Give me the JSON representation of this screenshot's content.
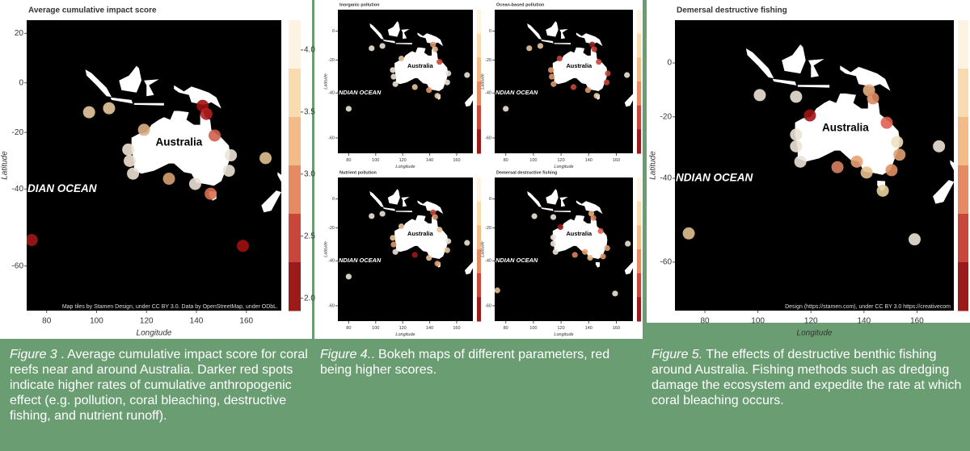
{
  "chart_data": [
    {
      "type": "scatter",
      "title": "Average cumulative impact score",
      "x_label": "Longitude",
      "y_label": "Latitude",
      "xlim": [
        72,
        174
      ],
      "ylim": [
        -68,
        25
      ],
      "xticks": [
        80,
        100,
        120,
        140,
        160
      ],
      "yticks": [
        20,
        0,
        -20,
        -40,
        -60
      ],
      "x": [
        97,
        105,
        119,
        142.5,
        144,
        147.3,
        112.7,
        113.3,
        114.6,
        129,
        139.5,
        145.7,
        153.8,
        153,
        167.7,
        74,
        158.6
      ],
      "y": [
        -12,
        -10.4,
        -19,
        -9.4,
        -12.7,
        -21.2,
        -26.5,
        -30.6,
        -35,
        -36.7,
        -38.4,
        -41.5,
        -28.6,
        -34,
        -29.6,
        -54.2,
        -55.6
      ],
      "colors": [
        "#e8c9a0",
        "#e8c9a0",
        "#e0b08a",
        "#a01010",
        "#b02020",
        "#d06050",
        "#efe4d5",
        "#efe4d5",
        "#ebe0d2",
        "#d8a070",
        "#ebe0d5",
        "#d87050",
        "#ece3d6",
        "#ece3d6",
        "#e0c090",
        "#a01818",
        "#a01010"
      ],
      "labels": [
        "Australia",
        "DIAN OCEAN"
      ],
      "attribution": "Map tiles by Stamen Design, under CC BY 3.0. Data by OpenStreetMap, under ODbL.",
      "colorbar_colors": [
        "#fdf3e3",
        "#f8dcb0",
        "#f2bb88",
        "#e58a63",
        "#c8473a",
        "#9b1a1a"
      ],
      "colorbar_lim": [
        1.9,
        4.24
      ],
      "colorbar_ticks": [
        {
          "value": 4,
          "label": "4.0"
        },
        3.5,
        {
          "value": 3,
          "label": "3.0"
        },
        2.5,
        {
          "value": 2,
          "label": "2.0"
        }
      ]
    },
    {
      "type": "scatter",
      "title": "Inorganic pollution",
      "x_label": "Longitude",
      "y_label": "Latitude",
      "xlim": [
        72,
        172
      ],
      "ylim": [
        -65,
        15
      ],
      "xticks": [
        80,
        100,
        120,
        140,
        160
      ],
      "yticks": [
        0,
        -20,
        -40,
        -60
      ],
      "x": [
        97,
        105,
        119,
        142.5,
        144,
        147.3,
        112.7,
        113.3,
        114.6,
        129,
        139.5,
        145.7,
        153.8,
        153,
        167.7,
        80
      ],
      "y": [
        -12,
        -10.4,
        -19,
        -9.4,
        -12.7,
        -21.2,
        -26.5,
        -30.6,
        -35,
        -36.7,
        -38.4,
        -41.5,
        -28.6,
        -34,
        -29.6,
        -48
      ],
      "colors": [
        "#ece3d6",
        "#ece3d6",
        "#e8c49a",
        "#e0966a",
        "#e8c49a",
        "#c8473a",
        "#ece3d6",
        "#ece3d6",
        "#ece3d6",
        "#e8c49a",
        "#e0966a",
        "#e8c49a",
        "#ece3d6",
        "#ece3d6",
        "#ece3d6",
        "#ece3d6"
      ],
      "labels": [
        "Australia",
        "NDIAN OCEAN"
      ],
      "colorbar_colors": [
        "#fdf3e3",
        "#f8dcb0",
        "#f2bb88",
        "#e58a63",
        "#c8473a",
        "#9b1a1a"
      ]
    },
    {
      "type": "scatter",
      "title": "Ocean-based pollution",
      "x_label": "Longitude",
      "y_label": "Latitude",
      "xlim": [
        72,
        172
      ],
      "ylim": [
        -65,
        15
      ],
      "xticks": [
        80,
        100,
        120,
        140,
        160
      ],
      "yticks": [
        0,
        -20,
        -40,
        -60
      ],
      "x": [
        97,
        105,
        119,
        142.5,
        144,
        147.3,
        112.7,
        113.3,
        114.6,
        129,
        139.5,
        145.7,
        153.8,
        153,
        167.7,
        80
      ],
      "y": [
        -12,
        -10.4,
        -19,
        -9.4,
        -12.7,
        -21.2,
        -26.5,
        -30.6,
        -35,
        -36.7,
        -38.4,
        -41.5,
        -28.6,
        -34,
        -29.6,
        -48
      ],
      "colors": [
        "#e8c49a",
        "#e8c49a",
        "#c8473a",
        "#9b1a1a",
        "#c8473a",
        "#c8473a",
        "#e0966a",
        "#e0966a",
        "#e0966a",
        "#c8473a",
        "#e0966a",
        "#e8c49a",
        "#c8473a",
        "#c8473a",
        "#ece3d6",
        "#ece3d6"
      ],
      "labels": [
        "Australia",
        "NDIAN OCEAN"
      ],
      "colorbar_colors": [
        "#fdf3e3",
        "#f8dcb0",
        "#f2bb88",
        "#e58a63",
        "#c8473a",
        "#9b1a1a"
      ]
    },
    {
      "type": "scatter",
      "title": "Nutrient pollution",
      "x_label": "Longitude",
      "y_label": "Latitude",
      "xlim": [
        72,
        172
      ],
      "ylim": [
        -65,
        15
      ],
      "xticks": [
        80,
        100,
        120,
        140,
        160
      ],
      "yticks": [
        0,
        -20,
        -40,
        -60
      ],
      "x": [
        97,
        105,
        119,
        142.5,
        144,
        147.3,
        112.7,
        113.3,
        114.6,
        129,
        139.5,
        145.7,
        153.8,
        153,
        167.7,
        80
      ],
      "y": [
        -12,
        -10.4,
        -19,
        -9.4,
        -12.7,
        -21.2,
        -26.5,
        -30.6,
        -35,
        -36.7,
        -38.4,
        -41.5,
        -28.6,
        -34,
        -29.6,
        -48
      ],
      "colors": [
        "#ece3d6",
        "#ece3d6",
        "#e8c49a",
        "#c8473a",
        "#e0966a",
        "#e8c49a",
        "#e8c49a",
        "#e0966a",
        "#ece3d6",
        "#9b1a1a",
        "#e8c49a",
        "#e0966a",
        "#ece3d6",
        "#e8c49a",
        "#ece3d6",
        "#ece3d6"
      ],
      "labels": [
        "Australia",
        "NDIAN OCEAN"
      ],
      "colorbar_colors": [
        "#fdf3e3",
        "#f8dcb0",
        "#f2bb88",
        "#e58a63",
        "#c8473a",
        "#9b1a1a"
      ]
    },
    {
      "type": "scatter",
      "title": "Demersal destructive fishing",
      "x_label": "Longitude",
      "y_label": "Latitude",
      "xlim": [
        72,
        172
      ],
      "ylim": [
        -65,
        15
      ],
      "xticks": [
        80,
        100,
        120,
        140,
        160
      ],
      "yticks": [
        0,
        -20,
        -40,
        -60
      ],
      "x": [
        100.7,
        114.4,
        119.6,
        141.9,
        143.4,
        148.6,
        114.4,
        114.4,
        116,
        130,
        137.3,
        141,
        150.4,
        153.4,
        168.3,
        73.9,
        159.1
      ],
      "y": [
        -12.1,
        -12.7,
        -19.5,
        -10.3,
        -13.3,
        -22.1,
        -26.2,
        -30.1,
        -35,
        -36.7,
        -35,
        -38.3,
        -37.6,
        -32.8,
        -30.1,
        -54.1,
        -55.4
      ],
      "colors": [
        "#ece3d6",
        "#ece3d6",
        "#9b1a1a",
        "#e8b080",
        "#d88a60",
        "#e06050",
        "#ece3d6",
        "#ece3d6",
        "#ece3d6",
        "#d88060",
        "#e8a070",
        "#e8c090",
        "#e09060",
        "#e0a070",
        "#ece3d6",
        "#e0c090",
        "#ece3d6"
      ],
      "labels": [
        "Australia",
        "NDIAN OCEAN"
      ],
      "colorbar_colors": [
        "#fdf3e3",
        "#f8dcb0",
        "#f2bb88",
        "#e58a63",
        "#c8473a",
        "#9b1a1a"
      ]
    },
    {
      "type": "scatter",
      "title": "Demersal destructive fishing",
      "x_label": "Longitude",
      "y_label": "Latitude",
      "xlim": [
        68.7,
        173.9
      ],
      "ylim": [
        -68,
        16
      ],
      "xticks": [
        80,
        100,
        120,
        140,
        160
      ],
      "yticks": [
        0,
        -20,
        -40,
        -60
      ],
      "x": [
        100.7,
        114.4,
        119.6,
        141.9,
        143.4,
        148.6,
        114.4,
        114.4,
        116,
        130,
        137.3,
        141,
        147.1,
        150.4,
        153.4,
        152.5,
        168.3,
        73.9,
        159.1
      ],
      "y": [
        -12.1,
        -12.7,
        -19.5,
        -10.3,
        -13.3,
        -22.1,
        -26.2,
        -30.1,
        -35,
        -36.7,
        -35,
        -38.3,
        -43.5,
        -37.6,
        -32.8,
        -28.7,
        -30.1,
        -54.1,
        -55.4
      ],
      "colors": [
        "#ece3d6",
        "#ece3d6",
        "#a01515",
        "#e8b080",
        "#d88a60",
        "#e06050",
        "#ece3d6",
        "#ece3d6",
        "#ece3d6",
        "#d88060",
        "#e8a070",
        "#e8c090",
        "#e8d0a0",
        "#e09060",
        "#e0a070",
        "#f0e0c0",
        "#ece3d6",
        "#e0c090",
        "#ece3d6"
      ],
      "labels": [
        "Australia",
        "NDIAN OCEAN"
      ],
      "attribution": "Design (https://stamen.com), under CC BY 3.0 https://creativecom",
      "colorbar_colors": [
        "#fdf3e3",
        "#f8dcb0",
        "#f2bb88",
        "#e58a63",
        "#c8473a",
        "#9b1a1a"
      ]
    }
  ],
  "captions": [
    {
      "label": "Figure 3",
      "text": " . Average cumulative impact score for coral reefs near and around Australia. Darker red spots indicate higher rates of cumulative anthropogenic effect (e.g. pollution, coral bleaching, destructive fishing, and nutrient runoff)."
    },
    {
      "label": "Figure 4.",
      "text": ". Bokeh maps of different parameters, red being higher scores."
    },
    {
      "label": "Figure 5.",
      "text": " The effects of destructive benthic fishing around Australia. Fishing methods such as dredging damage the ecosystem and expedite the rate at which coral bleaching occurs."
    }
  ]
}
